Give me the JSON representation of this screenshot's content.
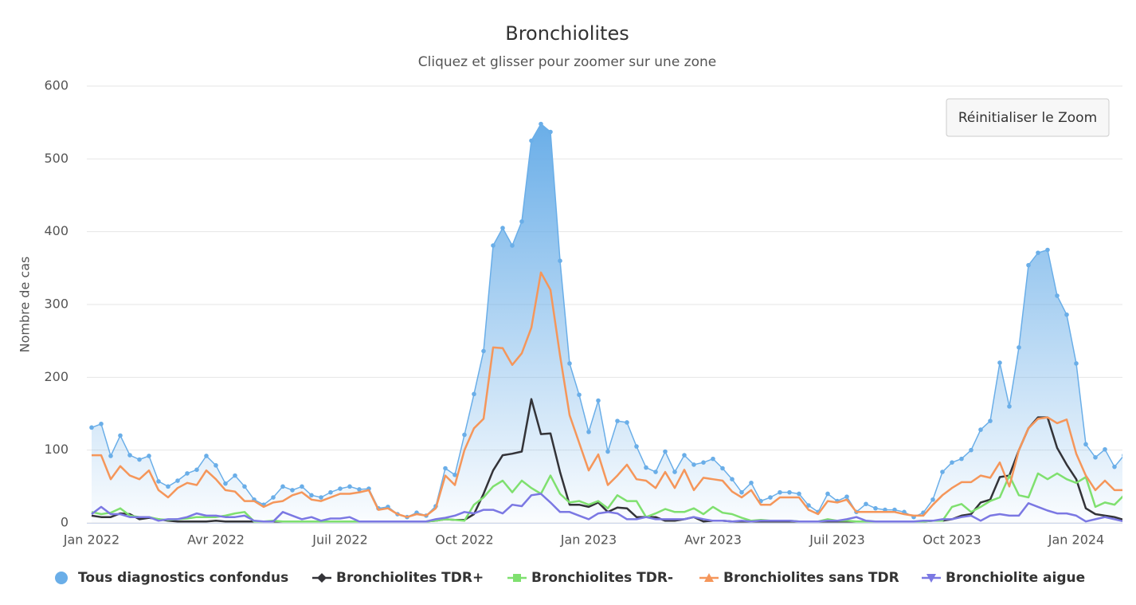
{
  "chart_data": {
    "type": "line",
    "title": "Bronchiolites",
    "subtitle": "Cliquez et glisser pour zoomer sur une zone",
    "y_label": "Nombre de cas",
    "reset_button": "Réinitialiser le Zoom",
    "ylim": [
      0,
      600
    ],
    "yticks": [
      0,
      100,
      200,
      300,
      400,
      500,
      600
    ],
    "grid": true,
    "categories": [
      "Jan 2022",
      null,
      null,
      null,
      null,
      null,
      null,
      null,
      null,
      null,
      null,
      null,
      null,
      "Avr 2022",
      null,
      null,
      null,
      null,
      null,
      null,
      null,
      null,
      null,
      null,
      null,
      null,
      "Juil 2022",
      null,
      null,
      null,
      null,
      null,
      null,
      null,
      null,
      null,
      null,
      null,
      null,
      "Oct 2022",
      null,
      null,
      null,
      null,
      null,
      null,
      null,
      null,
      null,
      null,
      null,
      null,
      "Jan 2023",
      null,
      null,
      null,
      null,
      null,
      null,
      null,
      null,
      null,
      null,
      null,
      null,
      "Avr 2023",
      null,
      null,
      null,
      null,
      null,
      null,
      null,
      null,
      null,
      null,
      null,
      null,
      "Juil 2023",
      null,
      null,
      null,
      null,
      null,
      null,
      null,
      null,
      null,
      null,
      null,
      "Oct 2023",
      null,
      null,
      null,
      null,
      null,
      null,
      null,
      null,
      null,
      null,
      null,
      null,
      "Jan 2024",
      null,
      null,
      null,
      null,
      null
    ],
    "series": [
      {
        "name": "Tous diagnostics confondus",
        "color": "#6aaee8",
        "area": true,
        "marker": "circle",
        "values": [
          131,
          136,
          92,
          120,
          93,
          87,
          92,
          57,
          50,
          58,
          68,
          73,
          92,
          79,
          54,
          65,
          50,
          32,
          25,
          35,
          50,
          45,
          50,
          38,
          35,
          42,
          47,
          50,
          46,
          47,
          20,
          22,
          12,
          8,
          14,
          10,
          23,
          75,
          66,
          121,
          177,
          236,
          381,
          405,
          381,
          414,
          525,
          548,
          537,
          360,
          219,
          176,
          125,
          168,
          98,
          140,
          138,
          105,
          76,
          70,
          98,
          70,
          93,
          80,
          83,
          88,
          75,
          60,
          42,
          55,
          30,
          35,
          42,
          42,
          40,
          24,
          15,
          40,
          30,
          36,
          15,
          26,
          20,
          18,
          18,
          15,
          8,
          14,
          32,
          70,
          83,
          88,
          100,
          128,
          140,
          220,
          160,
          241,
          354,
          371,
          375,
          312,
          286,
          219,
          108,
          90,
          101,
          77,
          93
        ]
      },
      {
        "name": "Bronchiolites TDR+",
        "color": "#333338",
        "marker": "diamond",
        "values": [
          10,
          8,
          8,
          13,
          12,
          5,
          7,
          5,
          3,
          2,
          2,
          2,
          2,
          3,
          2,
          2,
          2,
          2,
          2,
          2,
          2,
          2,
          2,
          2,
          2,
          2,
          2,
          2,
          2,
          2,
          2,
          2,
          2,
          2,
          2,
          2,
          3,
          5,
          4,
          4,
          12,
          40,
          72,
          93,
          95,
          98,
          170,
          122,
          123,
          70,
          25,
          25,
          22,
          28,
          15,
          21,
          20,
          8,
          8,
          8,
          3,
          3,
          5,
          8,
          2,
          3,
          3,
          2,
          2,
          2,
          2,
          2,
          2,
          2,
          2,
          2,
          2,
          2,
          2,
          2,
          2,
          2,
          2,
          2,
          2,
          2,
          2,
          2,
          3,
          3,
          5,
          10,
          12,
          28,
          32,
          63,
          65,
          100,
          130,
          145,
          145,
          103,
          80,
          60,
          20,
          12,
          10,
          8,
          4
        ]
      },
      {
        "name": "Bronchiolites TDR-",
        "color": "#7fe06f",
        "marker": "square",
        "values": [
          15,
          12,
          14,
          20,
          10,
          8,
          8,
          5,
          4,
          5,
          6,
          8,
          8,
          8,
          10,
          13,
          15,
          2,
          2,
          3,
          2,
          2,
          2,
          2,
          2,
          2,
          2,
          2,
          2,
          2,
          2,
          2,
          2,
          2,
          2,
          2,
          3,
          5,
          4,
          3,
          25,
          35,
          50,
          58,
          42,
          58,
          48,
          40,
          65,
          40,
          28,
          30,
          25,
          30,
          20,
          38,
          30,
          30,
          8,
          13,
          19,
          15,
          15,
          20,
          12,
          22,
          14,
          12,
          7,
          3,
          4,
          3,
          3,
          3,
          2,
          2,
          2,
          5,
          3,
          3,
          2,
          2,
          2,
          2,
          2,
          2,
          2,
          2,
          3,
          3,
          22,
          26,
          15,
          22,
          30,
          35,
          65,
          38,
          35,
          68,
          60,
          68,
          60,
          55,
          63,
          22,
          28,
          25,
          38
        ]
      },
      {
        "name": "Bronchiolites sans TDR",
        "color": "#f5965a",
        "marker": "triangle",
        "values": [
          93,
          93,
          60,
          78,
          65,
          60,
          72,
          45,
          35,
          48,
          55,
          52,
          72,
          60,
          45,
          43,
          30,
          30,
          22,
          28,
          30,
          38,
          42,
          32,
          30,
          35,
          40,
          40,
          42,
          45,
          18,
          20,
          12,
          8,
          12,
          10,
          20,
          65,
          52,
          100,
          130,
          143,
          241,
          240,
          217,
          233,
          268,
          344,
          320,
          230,
          148,
          110,
          72,
          94,
          52,
          65,
          80,
          60,
          58,
          48,
          70,
          48,
          73,
          45,
          62,
          60,
          58,
          43,
          35,
          45,
          25,
          25,
          35,
          35,
          35,
          18,
          12,
          30,
          28,
          32,
          15,
          15,
          15,
          15,
          15,
          12,
          10,
          10,
          25,
          38,
          48,
          56,
          56,
          65,
          62,
          83,
          50,
          100,
          130,
          143,
          145,
          137,
          142,
          95,
          65,
          45,
          58,
          45,
          45
        ]
      },
      {
        "name": "Bronchiolite aigue",
        "color": "#7b78e3",
        "marker": "triangle-down",
        "values": [
          12,
          22,
          12,
          12,
          8,
          8,
          8,
          3,
          5,
          5,
          8,
          13,
          10,
          10,
          8,
          8,
          10,
          3,
          2,
          2,
          15,
          10,
          5,
          8,
          3,
          6,
          6,
          8,
          2,
          2,
          2,
          2,
          2,
          2,
          2,
          2,
          5,
          7,
          10,
          15,
          13,
          18,
          18,
          13,
          25,
          23,
          38,
          40,
          28,
          15,
          15,
          10,
          5,
          13,
          15,
          13,
          5,
          5,
          8,
          5,
          5,
          5,
          5,
          8,
          5,
          3,
          3,
          2,
          3,
          2,
          3,
          3,
          3,
          3,
          2,
          2,
          2,
          3,
          3,
          5,
          8,
          3,
          2,
          2,
          2,
          2,
          2,
          3,
          3,
          5,
          5,
          8,
          10,
          3,
          10,
          12,
          10,
          10,
          27,
          22,
          17,
          13,
          13,
          10,
          2,
          5,
          8,
          5,
          2
        ]
      }
    ]
  }
}
